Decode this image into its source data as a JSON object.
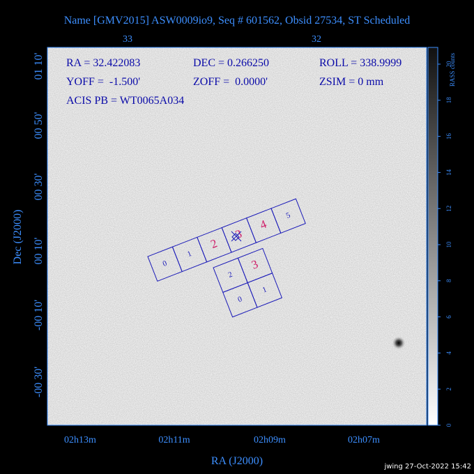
{
  "title": "Name [GMV2015] ASW0009io9, Seq # 601562, Obsid 27534, ST Scheduled",
  "top_axis": {
    "ticks": [
      "33",
      "32"
    ]
  },
  "info": [
    "RA = 32.422083",
    "DEC = 0.266250",
    "ROLL = 338.9999",
    "YOFF =  -1.500'",
    "ZOFF =  0.0000'",
    "ZSIM = 0 mm",
    "ACIS PB = WT0065A034"
  ],
  "y_axis": {
    "label": "Dec (J2000)",
    "ticks": [
      "01 10'",
      "00 50'",
      "00 30'",
      "00 10'",
      "-00 10'",
      "-00 30'"
    ]
  },
  "x_axis": {
    "label": "RA (J2000)",
    "ticks": [
      "02h13m",
      "02h11m",
      "02h09m",
      "02h07m"
    ]
  },
  "colorbar": {
    "label": "RASS counts",
    "ticks": [
      0,
      2,
      4,
      6,
      8,
      10,
      12,
      14,
      16,
      18,
      20
    ]
  },
  "chips": {
    "row": [
      "0",
      "1",
      "2",
      "3",
      "4",
      "5"
    ],
    "block": [
      "2",
      "3",
      "0",
      "1"
    ]
  },
  "footer": "jwing 27-Oct-2022 15:42"
}
